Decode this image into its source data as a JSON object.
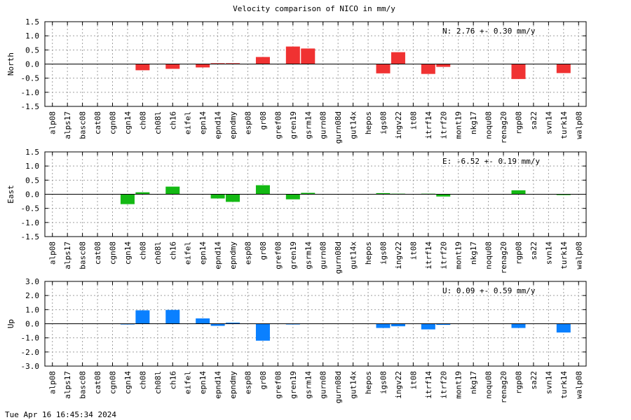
{
  "title": "Velocity comparison of NICO in mm/y",
  "timestamp": "Tue Apr 16 16:45:34 2024",
  "categories": [
    "alp08",
    "alps17",
    "basc08",
    "cat08",
    "cgn08",
    "cgn14",
    "ch08",
    "ch08l",
    "ch16",
    "eifel",
    "epn14",
    "epnd14",
    "epndmy",
    "esp08",
    "gr08",
    "gref08",
    "gren19",
    "gsrm14",
    "gurn08",
    "gurn08d",
    "gut14x",
    "hepos",
    "igs08",
    "ingv22",
    "it08",
    "itrf14",
    "itrf20",
    "mont19",
    "nkg17",
    "noqu08",
    "renag20",
    "rgp08",
    "sa22",
    "svn14",
    "turk14",
    "walp08"
  ],
  "chart_data": [
    {
      "type": "bar",
      "ylabel": "North",
      "ylim": [
        -1.5,
        1.5
      ],
      "yticks": [
        "-1.5",
        "-1.0",
        "-0.5",
        "0.0",
        "0.5",
        "1.0",
        "1.5"
      ],
      "grid": true,
      "color": "#f03232",
      "annotation": "N:   2.76 +-  0.30 mm/y",
      "values": [
        0,
        0,
        0,
        0,
        0,
        0,
        -0.22,
        0,
        -0.17,
        0,
        -0.12,
        0.03,
        0.03,
        0,
        0.25,
        0,
        0.62,
        0.55,
        0,
        0,
        0,
        0,
        -0.33,
        0.42,
        0,
        -0.35,
        -0.1,
        0,
        0,
        0,
        0,
        -0.53,
        0,
        0,
        -0.32,
        0
      ]
    },
    {
      "type": "bar",
      "ylabel": "East",
      "ylim": [
        -1.5,
        1.5
      ],
      "yticks": [
        "-1.5",
        "-1.0",
        "-0.5",
        "0.0",
        "0.5",
        "1.0",
        "1.5"
      ],
      "grid": true,
      "color": "#14b914",
      "annotation": "E:  -6.52 +-  0.19 mm/y",
      "values": [
        0,
        0,
        0,
        0,
        0,
        -0.35,
        0.07,
        0,
        0.27,
        0,
        0,
        -0.15,
        -0.27,
        0,
        0.32,
        0,
        -0.18,
        0.05,
        0,
        0,
        0,
        0,
        0.04,
        0.02,
        0,
        0.02,
        -0.08,
        0,
        0,
        0,
        0,
        0.14,
        0,
        0,
        -0.03,
        0
      ]
    },
    {
      "type": "bar",
      "ylabel": "Up",
      "ylim": [
        -3.0,
        3.0
      ],
      "yticks": [
        "-3.0",
        "-2.0",
        "-1.0",
        "0.0",
        "1.0",
        "2.0",
        "3.0"
      ],
      "grid": true,
      "color": "#0a80ff",
      "annotation": "U:   0.09 +-  0.59 mm/y",
      "values": [
        0,
        0,
        0,
        0,
        0,
        -0.05,
        0.95,
        0,
        0.98,
        0,
        0.38,
        -0.15,
        0.08,
        0,
        -1.2,
        0,
        -0.05,
        0,
        0,
        0,
        0,
        0,
        -0.3,
        -0.18,
        0,
        -0.4,
        -0.08,
        0,
        0,
        0,
        0,
        -0.3,
        0,
        0,
        -0.62,
        0
      ]
    }
  ]
}
